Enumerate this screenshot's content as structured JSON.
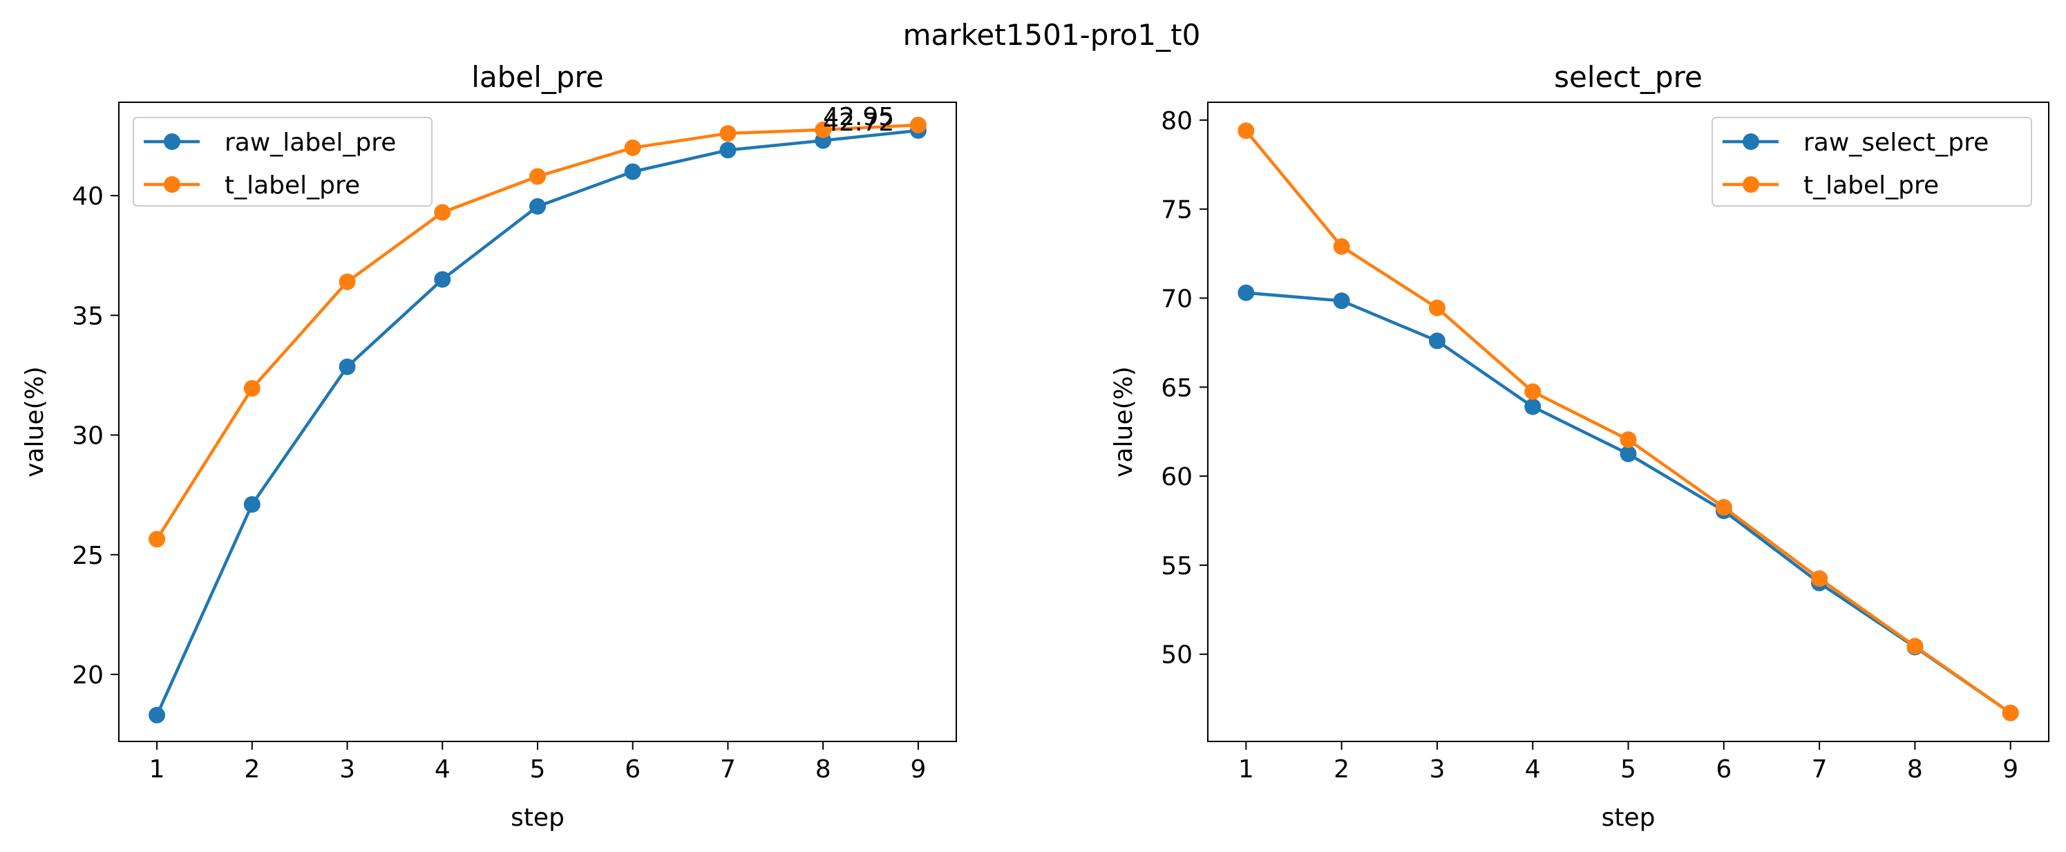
{
  "suptitle": "market1501-pro1_t0",
  "chart_data": [
    {
      "type": "line",
      "title": "label_pre",
      "xlabel": "step",
      "ylabel": "value(%)",
      "x": [
        1,
        2,
        3,
        4,
        5,
        6,
        7,
        8,
        9
      ],
      "xticks": [
        "1",
        "2",
        "3",
        "4",
        "5",
        "6",
        "7",
        "8",
        "9"
      ],
      "xlim": [
        0.6,
        9.4
      ],
      "ylim": [
        17.2,
        43.9
      ],
      "yticks": [
        "20",
        "25",
        "30",
        "35",
        "40"
      ],
      "grid": false,
      "legend": "upper left",
      "series": [
        {
          "name": "raw_label_pre",
          "color": "#1f77b4",
          "marker": "circle",
          "values": [
            18.3,
            27.1,
            32.85,
            36.5,
            39.55,
            41.0,
            41.9,
            42.3,
            42.72
          ]
        },
        {
          "name": "t_label_pre",
          "color": "#ff7f0e",
          "marker": "circle",
          "values": [
            25.65,
            31.95,
            36.4,
            39.3,
            40.8,
            42.0,
            42.6,
            42.75,
            42.95
          ]
        }
      ],
      "annotations": [
        {
          "text": "42.95",
          "x": 8.0,
          "y": 42.95
        },
        {
          "text": "42.72",
          "x": 8.0,
          "y": 42.72
        }
      ]
    },
    {
      "type": "line",
      "title": "select_pre",
      "xlabel": "step",
      "ylabel": "value(%)",
      "x": [
        1,
        2,
        3,
        4,
        5,
        6,
        7,
        8,
        9
      ],
      "xticks": [
        "1",
        "2",
        "3",
        "4",
        "5",
        "6",
        "7",
        "8",
        "9"
      ],
      "xlim": [
        0.6,
        9.4
      ],
      "ylim": [
        45.1,
        81.0
      ],
      "yticks": [
        "50",
        "55",
        "60",
        "65",
        "70",
        "75",
        "80"
      ],
      "grid": false,
      "legend": "upper right",
      "series": [
        {
          "name": "raw_select_pre",
          "color": "#1f77b4",
          "marker": "circle",
          "values": [
            70.3,
            69.85,
            67.6,
            63.9,
            61.25,
            58.05,
            54.0,
            50.4,
            46.7
          ]
        },
        {
          "name": "t_label_pre",
          "color": "#ff7f0e",
          "marker": "circle",
          "values": [
            79.4,
            72.9,
            69.45,
            64.75,
            62.05,
            58.25,
            54.25,
            50.45,
            46.7
          ]
        }
      ]
    }
  ]
}
